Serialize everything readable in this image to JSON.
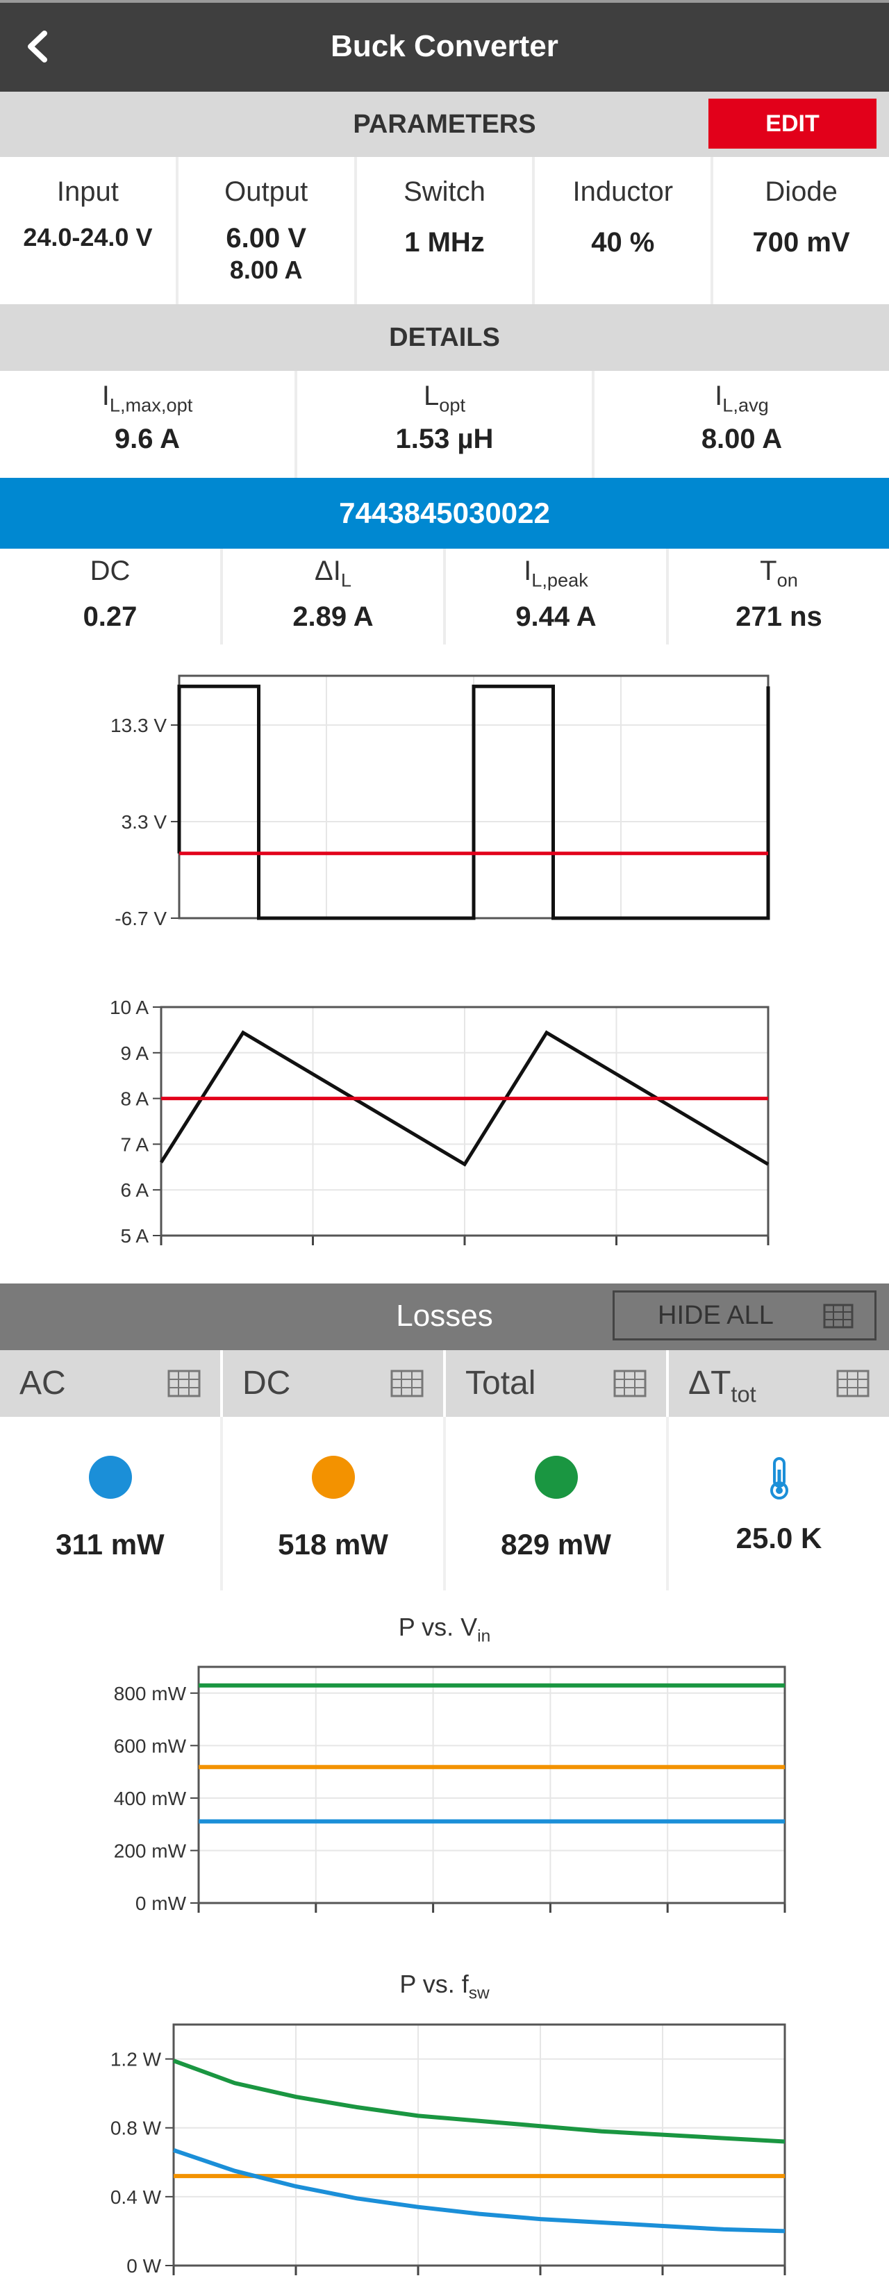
{
  "header": {
    "title": "Buck Converter",
    "back_icon": "chevron-left-icon"
  },
  "parameters": {
    "heading": "PARAMETERS",
    "edit_label": "EDIT",
    "items": [
      {
        "label": "Input",
        "value": "24.0-24.0 V",
        "value2": ""
      },
      {
        "label": "Output",
        "value": "6.00 V",
        "value2": "8.00 A"
      },
      {
        "label": "Switch",
        "value": "1 MHz",
        "value2": ""
      },
      {
        "label": "Inductor",
        "value": "40 %",
        "value2": ""
      },
      {
        "label": "Diode",
        "value": "700 mV",
        "value2": ""
      }
    ]
  },
  "details": {
    "heading": "DETAILS",
    "items": [
      {
        "label_main": "I",
        "label_sub": "L,max,opt",
        "value": "9.6 A"
      },
      {
        "label_main": "L",
        "label_sub": "opt",
        "value": "1.53 µH"
      },
      {
        "label_main": "I",
        "label_sub": "L,avg",
        "value": "8.00 A"
      }
    ]
  },
  "component": {
    "part_number": "7443845030022",
    "items": [
      {
        "label_main": "DC",
        "label_sub": "",
        "value": "0.27"
      },
      {
        "label_main": "ΔI",
        "label_sub": "L",
        "value": "2.89 A"
      },
      {
        "label_main": "I",
        "label_sub": "L,peak",
        "value": "9.44 A"
      },
      {
        "label_main": "T",
        "label_sub": "on",
        "value": "271 ns"
      }
    ]
  },
  "losses": {
    "heading": "Losses",
    "hide_all_label": "HIDE ALL",
    "tabs": [
      {
        "main": "AC",
        "sub": ""
      },
      {
        "main": "DC",
        "sub": ""
      },
      {
        "main": "Total",
        "sub": ""
      },
      {
        "main": "ΔT",
        "sub": "tot"
      }
    ],
    "summary": [
      {
        "icon": "blue-dot-icon",
        "color": "#1b8fd8",
        "value": "311 mW"
      },
      {
        "icon": "orange-dot-icon",
        "color": "#f39200",
        "value": "518 mW"
      },
      {
        "icon": "green-dot-icon",
        "color": "#1a9641",
        "value": "829 mW"
      },
      {
        "icon": "thermometer-icon",
        "color": "#1b8fd8",
        "value": "25.0 K"
      }
    ]
  },
  "chart_data": [
    {
      "type": "line",
      "title": "",
      "yticks": [
        "13.3 V",
        "3.3 V",
        "-6.7 V"
      ],
      "yticks_values": [
        13.3,
        3.3,
        -6.7
      ],
      "ylim": [
        -6.7,
        18.4
      ],
      "xlim": [
        0,
        2
      ],
      "grid": true,
      "series": [
        {
          "color": "#111111",
          "x": [
            0,
            0,
            0.27,
            0.27,
            1,
            1,
            1.27,
            1.27,
            2,
            2
          ],
          "y": [
            0,
            17.3,
            17.3,
            -6.7,
            -6.7,
            17.3,
            17.3,
            -6.7,
            -6.7,
            17.3
          ]
        },
        {
          "color": "#e2001a",
          "x": [
            0,
            2
          ],
          "y": [
            0,
            0
          ]
        }
      ]
    },
    {
      "type": "line",
      "title": "",
      "yticks": [
        "10 A",
        "9 A",
        "8 A",
        "7 A",
        "6 A",
        "5 A"
      ],
      "yticks_values": [
        10,
        9,
        8,
        7,
        6,
        5
      ],
      "ylim": [
        5,
        10
      ],
      "xlim": [
        0,
        2
      ],
      "grid": true,
      "series": [
        {
          "color": "#111111",
          "x": [
            0,
            0.27,
            1,
            1.27,
            2
          ],
          "y": [
            6.6,
            9.44,
            6.56,
            9.44,
            6.56
          ]
        },
        {
          "color": "#e2001a",
          "x": [
            0,
            2
          ],
          "y": [
            8,
            8
          ]
        }
      ]
    },
    {
      "type": "line",
      "title_main": "P vs. V",
      "title_sub": "in",
      "yticks": [
        "800 mW",
        "600 mW",
        "400 mW",
        "200 mW",
        "0 mW"
      ],
      "yticks_values": [
        800,
        600,
        400,
        200,
        0
      ],
      "ylim": [
        0,
        900
      ],
      "xlim": [
        0,
        1
      ],
      "grid": true,
      "series": [
        {
          "color": "#1a9641",
          "x": [
            0,
            1
          ],
          "y": [
            829,
            829
          ]
        },
        {
          "color": "#f39200",
          "x": [
            0,
            1
          ],
          "y": [
            518,
            518
          ]
        },
        {
          "color": "#1b8fd8",
          "x": [
            0,
            1
          ],
          "y": [
            311,
            311
          ]
        }
      ]
    },
    {
      "type": "line",
      "title_main": "P vs. f",
      "title_sub": "sw",
      "yticks": [
        "1.2 W",
        "0.8 W",
        "0.4 W",
        "0 W"
      ],
      "yticks_values": [
        1.2,
        0.8,
        0.4,
        0
      ],
      "ylim": [
        0,
        1.4
      ],
      "xlim": [
        0,
        1
      ],
      "grid": true,
      "series": [
        {
          "color": "#1a9641",
          "x": [
            0,
            0.1,
            0.2,
            0.3,
            0.4,
            0.5,
            0.6,
            0.7,
            0.8,
            0.9,
            1.0
          ],
          "y": [
            1.19,
            1.06,
            0.98,
            0.92,
            0.87,
            0.84,
            0.81,
            0.78,
            0.76,
            0.74,
            0.72
          ]
        },
        {
          "color": "#f39200",
          "x": [
            0,
            1
          ],
          "y": [
            0.52,
            0.52
          ]
        },
        {
          "color": "#1b8fd8",
          "x": [
            0,
            0.1,
            0.2,
            0.3,
            0.4,
            0.5,
            0.6,
            0.7,
            0.8,
            0.9,
            1.0
          ],
          "y": [
            0.67,
            0.55,
            0.46,
            0.39,
            0.34,
            0.3,
            0.27,
            0.25,
            0.23,
            0.21,
            0.2
          ]
        }
      ]
    }
  ]
}
